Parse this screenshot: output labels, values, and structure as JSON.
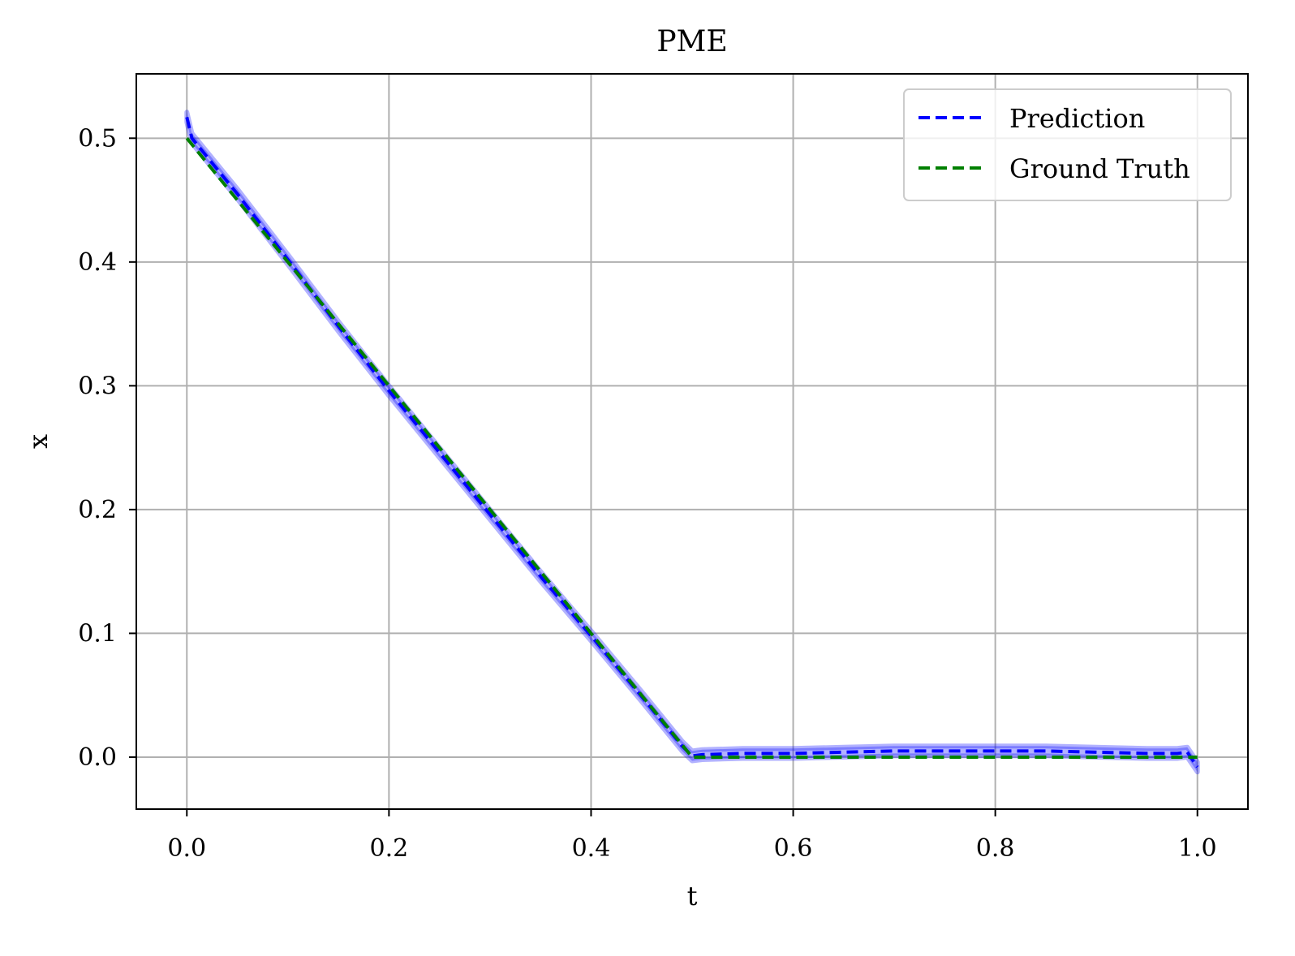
{
  "chart_data": {
    "type": "line",
    "title": "PME",
    "xlabel": "t",
    "ylabel": "x",
    "xlim": [
      -0.05,
      1.05
    ],
    "ylim": [
      -0.042,
      0.552
    ],
    "xticks": [
      0.0,
      0.2,
      0.4,
      0.6,
      0.8,
      1.0
    ],
    "xtick_labels": [
      "0.0",
      "0.2",
      "0.4",
      "0.6",
      "0.8",
      "1.0"
    ],
    "yticks": [
      0.0,
      0.1,
      0.2,
      0.3,
      0.4,
      0.5
    ],
    "ytick_labels": [
      "0.0",
      "0.1",
      "0.2",
      "0.3",
      "0.4",
      "0.5"
    ],
    "grid": true,
    "legend_position": "top-right",
    "series": [
      {
        "name": "Prediction",
        "color": "#0000ff",
        "line_style": "dashed",
        "uncertainty_band_color": "#0000ff",
        "x": [
          0.0,
          0.005,
          0.02,
          0.05,
          0.1,
          0.15,
          0.2,
          0.25,
          0.3,
          0.35,
          0.4,
          0.45,
          0.49,
          0.5,
          0.51,
          0.55,
          0.6,
          0.65,
          0.7,
          0.75,
          0.8,
          0.85,
          0.9,
          0.95,
          0.98,
          0.99,
          1.0
        ],
        "y": [
          0.517,
          0.5,
          0.485,
          0.455,
          0.402,
          0.348,
          0.296,
          0.246,
          0.196,
          0.146,
          0.098,
          0.049,
          0.009,
          0.001,
          0.002,
          0.003,
          0.003,
          0.004,
          0.005,
          0.005,
          0.005,
          0.005,
          0.004,
          0.003,
          0.003,
          0.004,
          -0.008
        ],
        "band_halfwidth": 0.004
      },
      {
        "name": "Ground Truth",
        "color": "#008000",
        "line_style": "dashed",
        "x": [
          0.0,
          0.5,
          0.6,
          0.7,
          0.8,
          0.9,
          1.0
        ],
        "y": [
          0.5,
          0.0,
          0.0,
          0.0,
          0.0,
          0.0,
          0.0
        ]
      }
    ]
  }
}
